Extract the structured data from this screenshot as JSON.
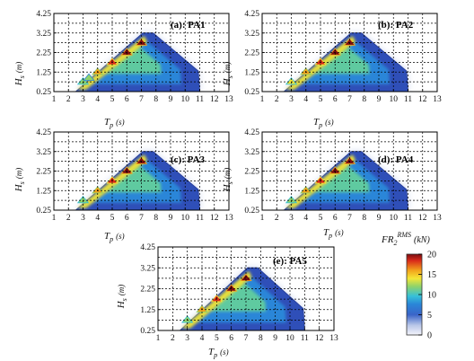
{
  "chart_data": [
    {
      "type": "heatmap",
      "title": "(a): PA1",
      "xlabel_main": "T",
      "xlabel_sub": "p",
      "xlabel_unit": "(s)",
      "ylabel_main": "H",
      "ylabel_sub": "s",
      "ylabel_unit": "(m)",
      "x_ticks": [
        "1",
        "2",
        "3",
        "4",
        "5",
        "6",
        "7",
        "8",
        "9",
        "10",
        "11",
        "12",
        "13"
      ],
      "y_ticks": [
        "0.25",
        "1.25",
        "2.25",
        "3.25",
        "4.25"
      ],
      "xlim": [
        1,
        13
      ],
      "ylim": [
        0.25,
        4.25
      ],
      "region_outline": [
        [
          2.5,
          0.25
        ],
        [
          7.1,
          3.25
        ],
        [
          7.8,
          3.25
        ],
        [
          10.9,
          1.3
        ],
        [
          11.0,
          0.25
        ]
      ],
      "peaks": [
        [
          3,
          0.75,
          12
        ],
        [
          4,
          1.25,
          15
        ],
        [
          5,
          1.75,
          17
        ],
        [
          6,
          2.25,
          19
        ],
        [
          7,
          2.75,
          20
        ],
        [
          3.4,
          0.95,
          10
        ]
      ],
      "grid": true
    },
    {
      "type": "heatmap",
      "title": "(b): PA2",
      "xlabel_main": "T",
      "xlabel_sub": "p",
      "xlabel_unit": "(s)",
      "ylabel_main": "H",
      "ylabel_sub": "s",
      "ylabel_unit": "(m)",
      "x_ticks": [
        "1",
        "2",
        "3",
        "4",
        "5",
        "6",
        "7",
        "8",
        "9",
        "10",
        "11",
        "12",
        "13"
      ],
      "y_ticks": [
        "0.25",
        "1.25",
        "2.25",
        "3.25",
        "4.25"
      ],
      "xlim": [
        1,
        13
      ],
      "ylim": [
        0.25,
        4.25
      ],
      "region_outline": [
        [
          2.5,
          0.25
        ],
        [
          7.1,
          3.25
        ],
        [
          7.8,
          3.25
        ],
        [
          10.9,
          1.3
        ],
        [
          11.0,
          0.25
        ]
      ],
      "peaks": [
        [
          3,
          0.75,
          13
        ],
        [
          4,
          1.25,
          16
        ],
        [
          5,
          1.75,
          18
        ],
        [
          6,
          2.25,
          19
        ],
        [
          7,
          2.75,
          20
        ]
      ],
      "grid": true
    },
    {
      "type": "heatmap",
      "title": "(c): PA3",
      "xlabel_main": "T",
      "xlabel_sub": "p",
      "xlabel_unit": "(s)",
      "ylabel_main": "H",
      "ylabel_sub": "s",
      "ylabel_unit": "(m)",
      "x_ticks": [
        "1",
        "2",
        "3",
        "4",
        "5",
        "6",
        "7",
        "8",
        "9",
        "10",
        "11",
        "12",
        "13"
      ],
      "y_ticks": [
        "0.25",
        "1.25",
        "2.25",
        "3.25",
        "4.25"
      ],
      "xlim": [
        1,
        13
      ],
      "ylim": [
        0.25,
        4.25
      ],
      "region_outline": [
        [
          2.5,
          0.25
        ],
        [
          7.1,
          3.25
        ],
        [
          7.8,
          3.25
        ],
        [
          10.9,
          1.3
        ],
        [
          11.0,
          0.25
        ]
      ],
      "peaks": [
        [
          3,
          0.75,
          12
        ],
        [
          4,
          1.25,
          16
        ],
        [
          5,
          1.75,
          18
        ],
        [
          6,
          2.25,
          19
        ],
        [
          7,
          2.75,
          20
        ]
      ],
      "grid": true
    },
    {
      "type": "heatmap",
      "title": "(d): PA4",
      "xlabel_main": "T",
      "xlabel_sub": "p",
      "xlabel_unit": "(s)",
      "ylabel_main": "H",
      "ylabel_sub": "s",
      "ylabel_unit": "(m)",
      "x_ticks": [
        "1",
        "2",
        "3",
        "4",
        "5",
        "6",
        "7",
        "8",
        "9",
        "10",
        "11",
        "12",
        "13"
      ],
      "y_ticks": [
        "0.25",
        "1.25",
        "2.25",
        "3.25",
        "4.25"
      ],
      "xlim": [
        1,
        13
      ],
      "ylim": [
        0.25,
        4.25
      ],
      "region_outline": [
        [
          2.5,
          0.25
        ],
        [
          7.1,
          3.25
        ],
        [
          7.8,
          3.25
        ],
        [
          10.9,
          1.3
        ],
        [
          11.0,
          0.25
        ]
      ],
      "peaks": [
        [
          3,
          0.75,
          12
        ],
        [
          4,
          1.25,
          16
        ],
        [
          5,
          1.75,
          18
        ],
        [
          6,
          2.25,
          19
        ],
        [
          7,
          2.75,
          20
        ]
      ],
      "grid": true
    },
    {
      "type": "heatmap",
      "title": "(e): PA5",
      "xlabel_main": "T",
      "xlabel_sub": "p",
      "xlabel_unit": "(s)",
      "ylabel_main": "H",
      "ylabel_sub": "s",
      "ylabel_unit": "(m)",
      "x_ticks": [
        "1",
        "2",
        "3",
        "4",
        "5",
        "6",
        "7",
        "8",
        "9",
        "10",
        "11",
        "12",
        "13"
      ],
      "y_ticks": [
        "0.25",
        "1.25",
        "2.25",
        "3.25",
        "4.25"
      ],
      "xlim": [
        1,
        13
      ],
      "ylim": [
        0.25,
        4.25
      ],
      "region_outline": [
        [
          2.5,
          0.25
        ],
        [
          7.1,
          3.25
        ],
        [
          7.8,
          3.25
        ],
        [
          10.9,
          1.3
        ],
        [
          11.0,
          0.25
        ]
      ],
      "peaks": [
        [
          3,
          0.75,
          12
        ],
        [
          4,
          1.25,
          15
        ],
        [
          5,
          1.75,
          17
        ],
        [
          6,
          2.25,
          19
        ],
        [
          7,
          2.75,
          20
        ]
      ],
      "grid": true
    }
  ],
  "colorbar": {
    "label_main": "FR",
    "label_sub": "2",
    "label_sup": "RMS",
    "label_unit": "(kN)",
    "ticks": [
      "20",
      "15",
      "10",
      "5",
      "0"
    ],
    "range": [
      0,
      20
    ]
  },
  "colormap": [
    "#f4f4fb",
    "#b8c6e8",
    "#3a64c8",
    "#2a86d8",
    "#36c0d8",
    "#8fd36a",
    "#f5e636",
    "#f2a21c",
    "#d92a1a",
    "#7a0d10"
  ]
}
